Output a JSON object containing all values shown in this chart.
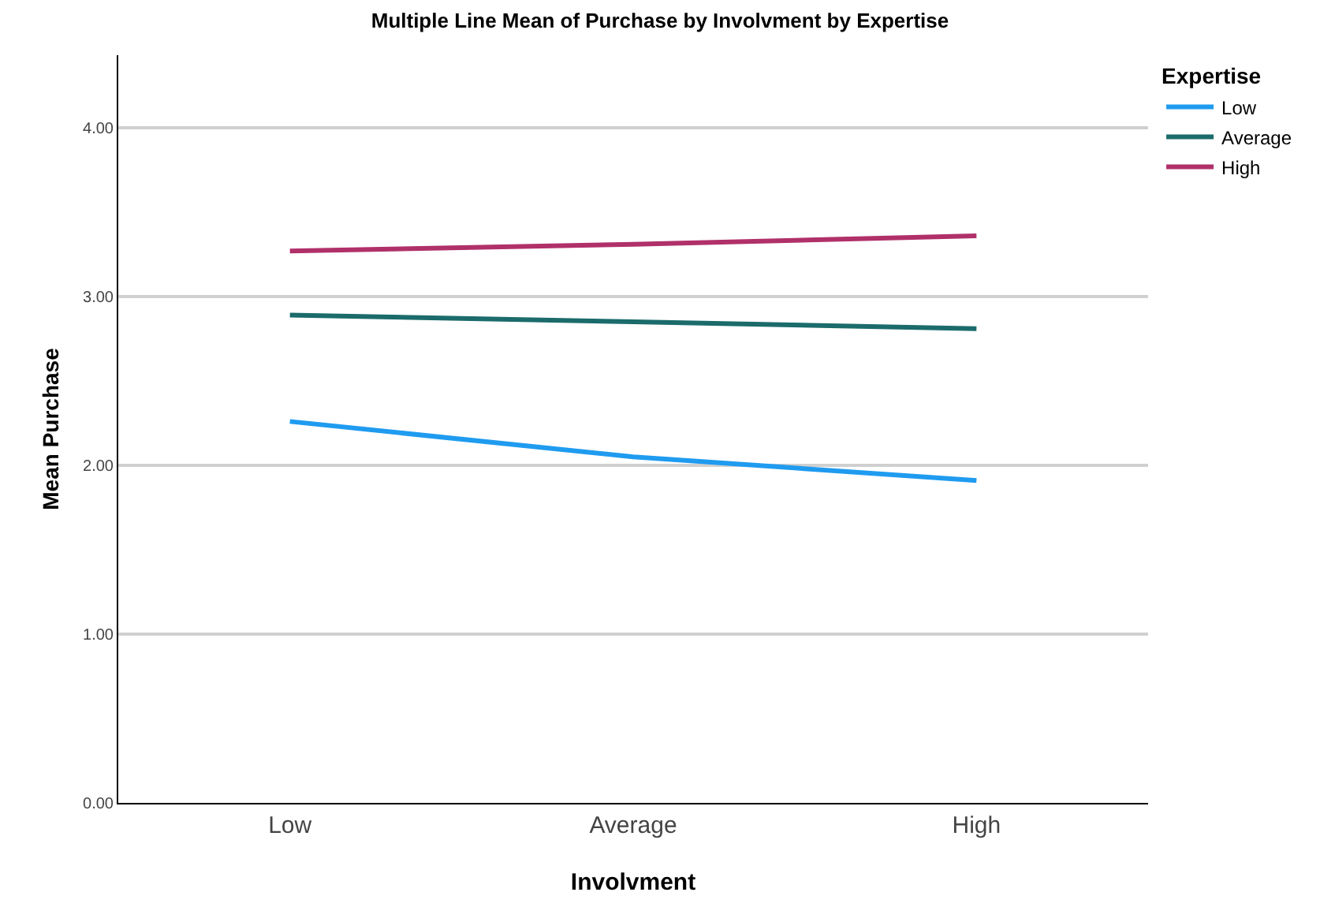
{
  "chart_data": {
    "type": "line",
    "title": "Multiple Line Mean of Purchase by Involvment by Expertise",
    "xlabel": "Involvment",
    "ylabel": "Mean Purchase",
    "legend_title": "Expertise",
    "categories": [
      "Low",
      "Average",
      "High"
    ],
    "series": [
      {
        "name": "Low",
        "color": "#1f9bf0",
        "values": [
          2.26,
          2.05,
          1.91
        ]
      },
      {
        "name": "Average",
        "color": "#1b6b6b",
        "values": [
          2.89,
          2.85,
          2.81
        ]
      },
      {
        "name": "High",
        "color": "#b0306a",
        "values": [
          3.27,
          3.31,
          3.36
        ]
      }
    ],
    "ylim": [
      0,
      4.43
    ],
    "yticks": [
      {
        "value": 0,
        "label": "0.00"
      },
      {
        "value": 1,
        "label": "1.00"
      },
      {
        "value": 2,
        "label": "2.00"
      },
      {
        "value": 3,
        "label": "3.00"
      },
      {
        "value": 4,
        "label": "4.00"
      }
    ],
    "grid": "y",
    "legend": "top right",
    "marker": "none",
    "line_style": "solid"
  }
}
